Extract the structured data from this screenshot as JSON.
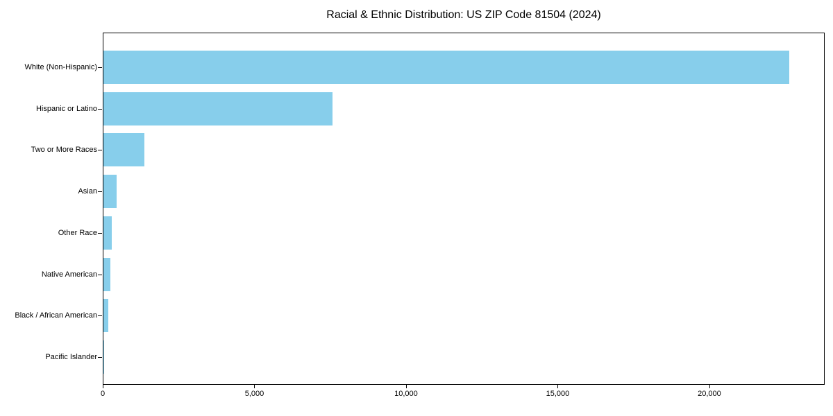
{
  "chart_data": {
    "type": "bar",
    "orientation": "horizontal",
    "title": "Racial & Ethnic Distribution: US ZIP Code 81504 (2024)",
    "xlabel": "",
    "ylabel": "",
    "categories": [
      "White (Non-Hispanic)",
      "Hispanic or Latino",
      "Two or More Races",
      "Asian",
      "Other Race",
      "Native American",
      "Black / African American",
      "Pacific Islander"
    ],
    "values": [
      22600,
      7550,
      1350,
      430,
      285,
      240,
      170,
      15
    ],
    "xlim": [
      0,
      23800
    ],
    "x_ticks": [
      0,
      5000,
      10000,
      15000,
      20000
    ],
    "x_tick_labels": [
      "0",
      "5,000",
      "10,000",
      "15,000",
      "20,000"
    ],
    "bar_color": "#87CEEB",
    "axis_color": "#000000",
    "background_color": "#ffffff",
    "grid": false,
    "legend": false
  }
}
